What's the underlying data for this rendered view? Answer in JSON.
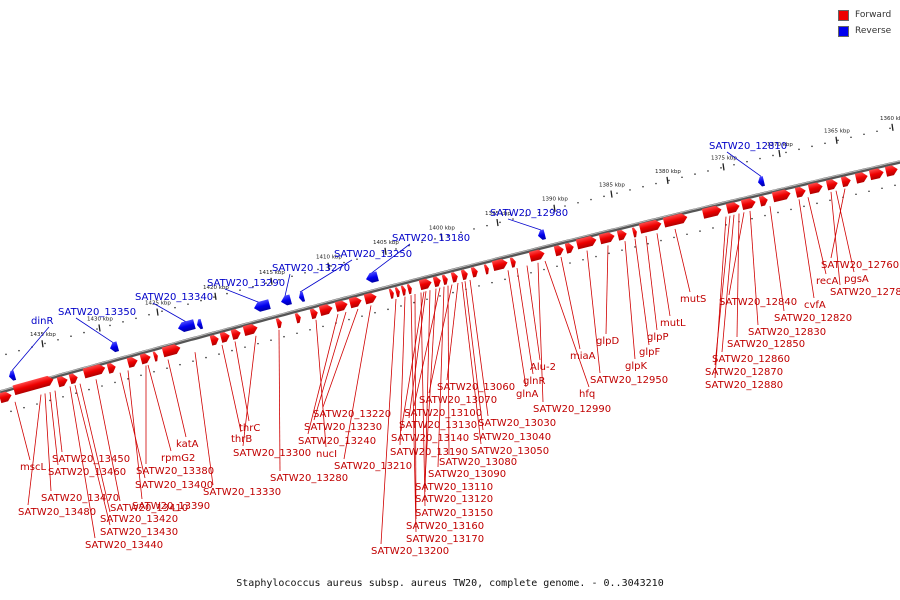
{
  "legend": {
    "forward": {
      "label": "Forward",
      "color": "#ee0000"
    },
    "reverse": {
      "label": "Reverse",
      "color": "#0000ee"
    }
  },
  "caption": "Staphylococcus aureus subsp. aureus TW20, complete genome. - 0..3043210",
  "ticks": [
    "1435 kbp",
    "1430 kbp",
    "1425 kbp",
    "1420 kbp",
    "1415 kbp",
    "1410 kbp",
    "1405 kbp",
    "1400 kbp",
    "1395 kbp",
    "1390 kbp",
    "1385 kbp",
    "1380 kbp",
    "1375 kbp",
    "1370 kbp",
    "1365 kbp",
    "1360 kbp"
  ],
  "forward_labels": [
    "mscL",
    "SATW20_13480",
    "SATW20_13470",
    "SATW20_13460",
    "SATW20_13450",
    "SATW20_13440",
    "SATW20_13430",
    "SATW20_13420",
    "SATW20_13410",
    "SATW20_13400",
    "rpmG2",
    "SATW20_13390",
    "SATW20_13380",
    "katA",
    "SATW20_13330",
    "thrB",
    "thrC",
    "SATW20_13300",
    "SATW20_13280",
    "nucI",
    "SATW20_13240",
    "SATW20_13230",
    "SATW20_13220",
    "SATW20_13210",
    "SATW20_13200",
    "SATW20_13190",
    "SATW20_13170",
    "SATW20_13160",
    "SATW20_13150",
    "SATW20_13140",
    "SATW20_13130",
    "SATW20_13120",
    "SATW20_13110",
    "SATW20_13100",
    "SATW20_13090",
    "SATW20_13080",
    "SATW20_13070",
    "SATW20_13060",
    "SATW20_13050",
    "SATW20_13040",
    "SATW20_13030",
    "glnA",
    "glnR",
    "Alu-2",
    "SATW20_12990",
    "hfq",
    "miaA",
    "SATW20_12950",
    "glpD",
    "glpK",
    "glpF",
    "glpP",
    "mutL",
    "mutS",
    "SATW20_12880",
    "SATW20_12870",
    "SATW20_12860",
    "SATW20_12850",
    "SATW20_12840",
    "SATW20_12830",
    "SATW20_12820",
    "cvfA",
    "recA",
    "SATW20_12780",
    "pgsA",
    "SATW20_12760"
  ],
  "reverse_labels": [
    "dinR",
    "SATW20_13350",
    "SATW20_13340",
    "SATW20_13290",
    "SATW20_13270",
    "SATW20_13250",
    "SATW20_13180",
    "SATW20_12980",
    "SATW20_12810"
  ]
}
